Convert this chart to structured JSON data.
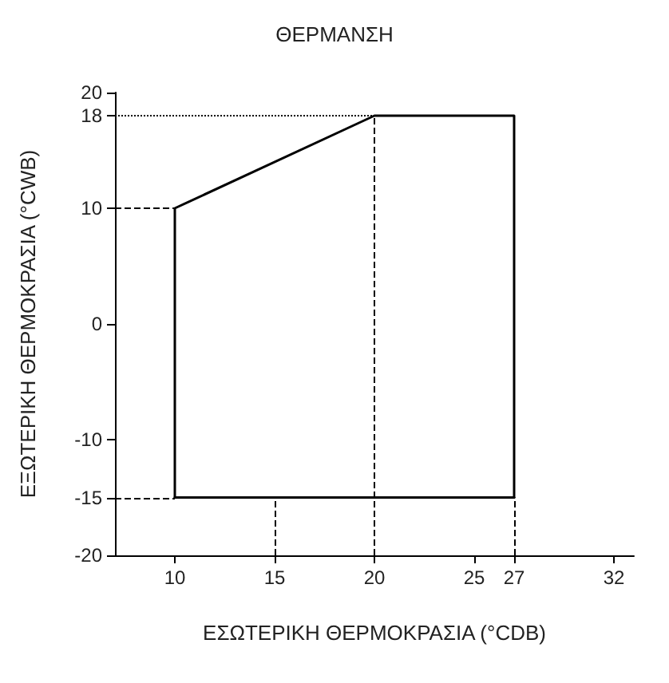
{
  "chart_data": {
    "type": "line",
    "title": "ΘΕΡΜΑΝΣΗ",
    "xlabel": "ΕΣΩΤΕΡΙΚΗ ΘΕΡΜΟΚΡΑΣΙΑ (°CDB)",
    "ylabel": "ΕΞΩΤΕΡΙΚΗ ΘΕΡΜΟΚΡΑΣΙΑ (°CWB)",
    "series": [
      {
        "color": "#000000",
        "x": [
          10,
          10,
          20,
          27,
          27
        ],
        "values": [
          -15,
          10,
          18,
          18,
          -15
        ]
      },
      {
        "color": "#000000",
        "x": [
          10,
          27
        ],
        "values": [
          -15,
          -15
        ]
      }
    ],
    "xlim": [
      7,
      33
    ],
    "xticks": [
      10,
      15,
      20,
      25,
      27,
      32
    ],
    "ylim": [
      -20,
      20
    ],
    "yticks": [
      -20,
      -15,
      -10,
      0,
      10,
      18,
      20
    ],
    "ref_lines": [
      {
        "axis": "y",
        "value": 18,
        "line_style": "dotted"
      },
      {
        "axis": "y",
        "value": 10,
        "line_style": "dashed"
      },
      {
        "axis": "y",
        "value": -15,
        "line_style": "dashed"
      },
      {
        "axis": "x",
        "value": 15,
        "line_style": "dashed"
      },
      {
        "axis": "x",
        "value": 20,
        "line_style": "dashed"
      },
      {
        "axis": "x",
        "value": 27,
        "line_style": "dashed"
      }
    ],
    "grid": false,
    "marker": "none",
    "line_style": "solid"
  }
}
